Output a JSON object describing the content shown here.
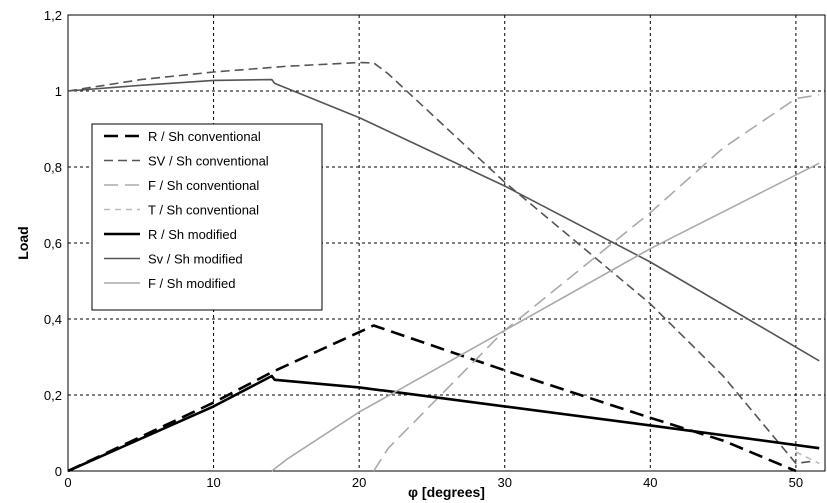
{
  "chart_data": {
    "type": "line",
    "xlabel": "φ [degrees]",
    "ylabel": "Load",
    "xlim": [
      0,
      52
    ],
    "ylim": [
      0,
      1.2
    ],
    "xticks": [
      0,
      10,
      20,
      30,
      40,
      50
    ],
    "yticks": [
      0,
      0.2,
      0.4,
      0.6,
      0.8,
      1,
      1.2
    ],
    "xtick_labels": [
      "0",
      "10",
      "20",
      "30",
      "40",
      "50"
    ],
    "ytick_labels": [
      "0",
      "0,2",
      "0,4",
      "0,6",
      "0,8",
      "1",
      "1,2"
    ],
    "grid": true,
    "legend_placement": "left",
    "series": [
      {
        "name": "R / Sh   conventional",
        "color": "#000000",
        "dash": "dash-long",
        "points": [
          [
            0,
            0
          ],
          [
            5,
            0.09
          ],
          [
            10,
            0.18
          ],
          [
            14,
            0.26
          ],
          [
            21,
            0.383
          ],
          [
            30,
            0.265
          ],
          [
            40,
            0.14
          ],
          [
            45,
            0.08
          ],
          [
            50,
            0.0
          ]
        ]
      },
      {
        "name": "SV / Sh   conventional",
        "color": "#555555",
        "dash": "dash-medium",
        "points": [
          [
            0,
            1.0
          ],
          [
            5,
            1.03
          ],
          [
            10,
            1.05
          ],
          [
            15,
            1.065
          ],
          [
            20,
            1.075
          ],
          [
            21,
            1.074
          ],
          [
            22,
            1.045
          ],
          [
            30,
            0.76
          ],
          [
            40,
            0.44
          ],
          [
            45,
            0.25
          ],
          [
            50,
            0.02
          ],
          [
            51,
            0.025
          ]
        ]
      },
      {
        "name": "F / Sh   conventional",
        "color": "#aaaaaa",
        "dash": "dash-long",
        "points": [
          [
            21,
            0.0
          ],
          [
            22,
            0.06
          ],
          [
            30,
            0.37
          ],
          [
            40,
            0.68
          ],
          [
            45,
            0.85
          ],
          [
            50,
            0.98
          ],
          [
            51.6,
            0.99
          ]
        ]
      },
      {
        "name": "T / Sh   conventional",
        "color": "#bbbbbb",
        "dash": "dash-short",
        "points": [
          [
            50,
            0.05
          ],
          [
            51.6,
            0.02
          ]
        ]
      },
      {
        "name": "R / Sh   modified",
        "color": "#000000",
        "dash": "solid",
        "points": [
          [
            0,
            0
          ],
          [
            5,
            0.085
          ],
          [
            10,
            0.17
          ],
          [
            14,
            0.25
          ],
          [
            14.2,
            0.24
          ],
          [
            20,
            0.22
          ],
          [
            30,
            0.17
          ],
          [
            40,
            0.12
          ],
          [
            51.6,
            0.06
          ]
        ]
      },
      {
        "name": "Sv / Sh   modified",
        "color": "#555555",
        "dash": "solid",
        "points": [
          [
            0,
            1.0
          ],
          [
            5,
            1.015
          ],
          [
            10,
            1.028
          ],
          [
            14,
            1.03
          ],
          [
            14.2,
            1.02
          ],
          [
            20,
            0.93
          ],
          [
            30,
            0.75
          ],
          [
            40,
            0.55
          ],
          [
            51.6,
            0.29
          ]
        ]
      },
      {
        "name": "F / Sh   modified",
        "color": "#aaaaaa",
        "dash": "solid",
        "points": [
          [
            14,
            0.0
          ],
          [
            15,
            0.03
          ],
          [
            20,
            0.155
          ],
          [
            30,
            0.37
          ],
          [
            40,
            0.585
          ],
          [
            51.6,
            0.81
          ]
        ]
      }
    ]
  }
}
